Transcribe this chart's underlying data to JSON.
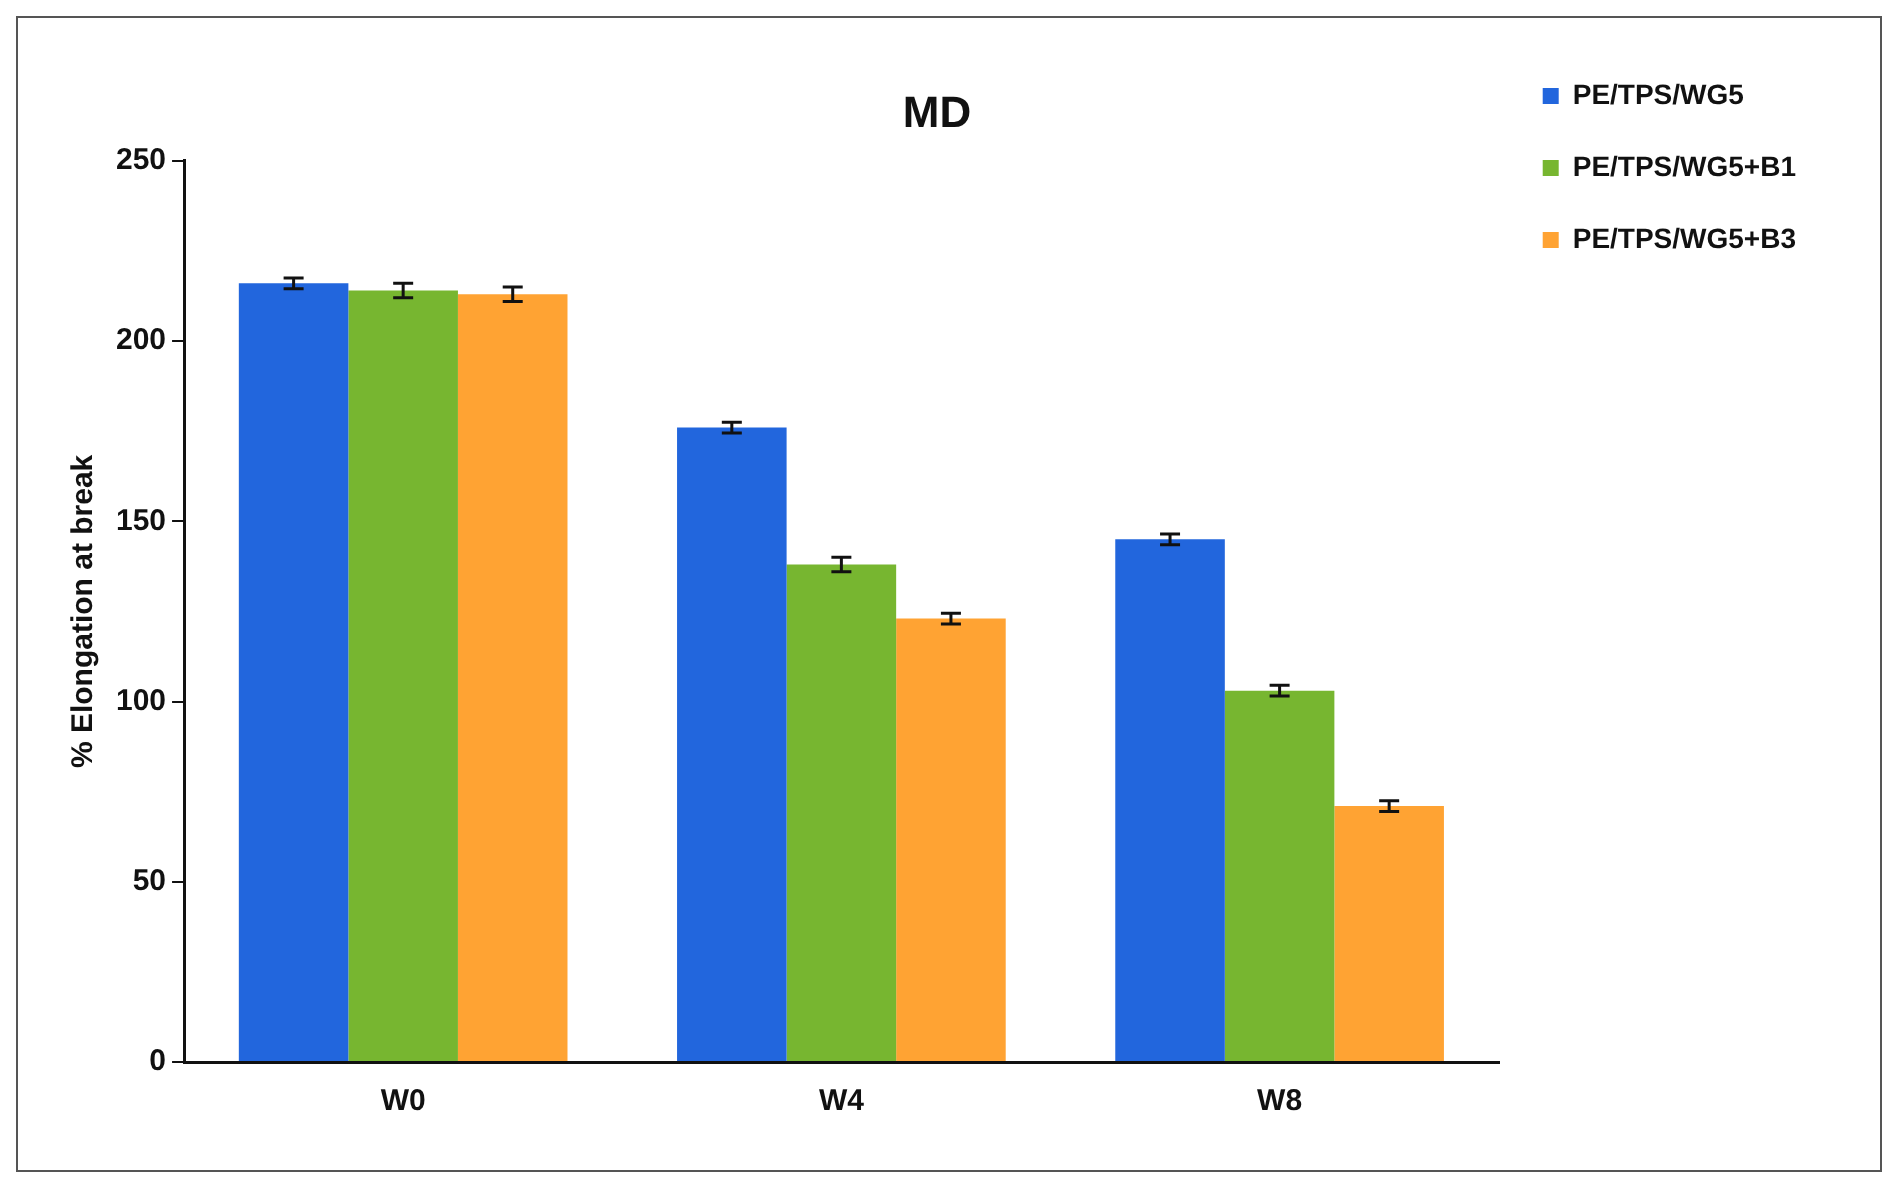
{
  "chart_data": {
    "type": "bar",
    "title": "MD",
    "ylabel": "% Elongation at break",
    "categories": [
      "W0",
      "W4",
      "W8"
    ],
    "series": [
      {
        "name": "PE/TPS/WG5",
        "color": "#2266dd",
        "values": [
          216,
          176,
          145
        ],
        "errors": [
          1.5,
          1.5,
          1.5
        ]
      },
      {
        "name": "PE/TPS/WG5+B1",
        "color": "#77b630",
        "values": [
          214,
          138,
          103
        ],
        "errors": [
          2,
          2,
          1.5
        ]
      },
      {
        "name": "PE/TPS/WG5+B3",
        "color": "#ffa333",
        "values": [
          213,
          123,
          71
        ],
        "errors": [
          2,
          1.5,
          1.5
        ]
      }
    ],
    "ylim": [
      0,
      250
    ],
    "yticks": [
      0,
      50,
      100,
      150,
      200,
      250
    ],
    "grid": false,
    "legend": "top right"
  }
}
